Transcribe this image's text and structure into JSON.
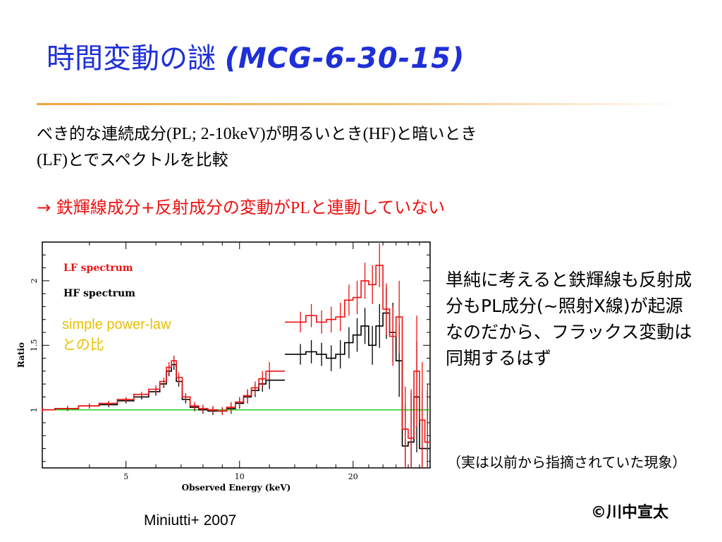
{
  "title": {
    "main": "時間変動の謎 ",
    "object": "(MCG-6-30-15)"
  },
  "paragraph1": {
    "a": "べき的な連続成分",
    "b": "(PL; 2-10keV)",
    "c": "が明るいとき",
    "d": "(HF)",
    "e": "と暗いとき",
    "f": "(LF)",
    "g": "とでスペクトルを比較"
  },
  "paragraph2": {
    "arrow": "→ ",
    "a": "鉄輝線成分+反射成分の変動が",
    "b": "PL",
    "c": "と連動していない"
  },
  "side_text": "単純に考えると鉄輝線も反射成分もPL成分(~照射X線)が起源なのだから、フラックス変動は同期するはず",
  "note": "（実は以前から指摘されていた現象）",
  "copyright": "©川中宣太",
  "citation": "Miniutti+ 2007",
  "colors": {
    "title": "#1f2fd8",
    "highlight": "#ee1111",
    "lf": "#ee1111",
    "hf": "#000000",
    "powerlaw": "#22cc22",
    "annotation": "#e8c000",
    "rule": "#f0a23c"
  },
  "chart_data": {
    "type": "line",
    "xlabel": "Observed Energy (keV)",
    "ylabel": "Ratio",
    "x_ticks": [
      5,
      10,
      20
    ],
    "y_ticks": [
      1,
      1.5,
      2
    ],
    "xlim": [
      3,
      32
    ],
    "ylim": [
      0.55,
      2.3
    ],
    "legend": [
      "LF spectrum",
      "HF spectrum"
    ],
    "annotation": "simple power-lawとの比",
    "reference_line": {
      "y": 1.0,
      "color": "#22cc22"
    },
    "series": [
      {
        "name": "LF spectrum",
        "color": "#ee1111",
        "x": [
          3.0,
          3.5,
          4.0,
          4.5,
          5.0,
          5.5,
          6.0,
          6.3,
          6.5,
          6.7,
          6.9,
          7.2,
          7.6,
          8.0,
          8.5,
          9.0,
          9.5,
          10.0,
          10.5,
          11.0,
          11.5,
          12.0,
          14.5,
          15.5,
          16.5,
          17.5,
          18.5,
          19.5,
          20.5,
          21.5,
          22.5,
          23.5,
          24.5,
          25.5,
          26.5,
          27.5,
          28.5,
          29.5,
          30.5,
          31.5
        ],
        "y": [
          1.0,
          1.01,
          1.03,
          1.05,
          1.08,
          1.12,
          1.16,
          1.22,
          1.33,
          1.38,
          1.25,
          1.1,
          1.03,
          1.01,
          1.0,
          0.99,
          1.02,
          1.06,
          1.11,
          1.17,
          1.24,
          1.3,
          1.68,
          1.73,
          1.68,
          1.7,
          1.72,
          1.85,
          1.87,
          2.0,
          1.97,
          2.12,
          1.78,
          1.57,
          1.72,
          0.85,
          0.78,
          1.3,
          0.92,
          0.75
        ],
        "err": [
          0.02,
          0.02,
          0.02,
          0.02,
          0.02,
          0.02,
          0.03,
          0.03,
          0.04,
          0.04,
          0.04,
          0.03,
          0.03,
          0.03,
          0.03,
          0.03,
          0.04,
          0.04,
          0.05,
          0.05,
          0.06,
          0.07,
          0.08,
          0.09,
          0.09,
          0.1,
          0.11,
          0.12,
          0.13,
          0.14,
          0.15,
          0.17,
          0.2,
          0.23,
          0.28,
          0.33,
          0.38,
          0.43,
          0.45,
          0.45
        ]
      },
      {
        "name": "HF spectrum",
        "color": "#000000",
        "x": [
          3.0,
          3.5,
          4.0,
          4.5,
          5.0,
          5.5,
          6.0,
          6.3,
          6.5,
          6.7,
          6.9,
          7.2,
          7.6,
          8.0,
          8.5,
          9.0,
          9.5,
          10.0,
          10.5,
          11.0,
          11.5,
          12.0,
          14.5,
          15.5,
          16.5,
          17.5,
          18.5,
          19.5,
          20.5,
          21.5,
          22.5,
          23.5,
          24.5,
          25.5,
          26.5,
          27.5,
          28.5,
          29.5,
          30.5,
          31.5
        ],
        "y": [
          1.0,
          1.01,
          1.03,
          1.04,
          1.07,
          1.1,
          1.14,
          1.2,
          1.3,
          1.35,
          1.22,
          1.08,
          1.02,
          1.0,
          0.99,
          0.99,
          1.01,
          1.05,
          1.1,
          1.15,
          1.2,
          1.23,
          1.43,
          1.45,
          1.43,
          1.4,
          1.43,
          1.52,
          1.58,
          1.65,
          1.5,
          1.65,
          1.75,
          1.6,
          1.38,
          0.72,
          0.75,
          1.1,
          0.7,
          0.7
        ],
        "err": [
          0.02,
          0.02,
          0.02,
          0.02,
          0.02,
          0.02,
          0.03,
          0.03,
          0.04,
          0.04,
          0.04,
          0.03,
          0.03,
          0.03,
          0.03,
          0.03,
          0.04,
          0.04,
          0.05,
          0.05,
          0.06,
          0.07,
          0.08,
          0.09,
          0.09,
          0.1,
          0.11,
          0.12,
          0.13,
          0.14,
          0.15,
          0.17,
          0.2,
          0.23,
          0.28,
          0.33,
          0.38,
          0.43,
          0.45,
          0.45
        ]
      }
    ]
  }
}
